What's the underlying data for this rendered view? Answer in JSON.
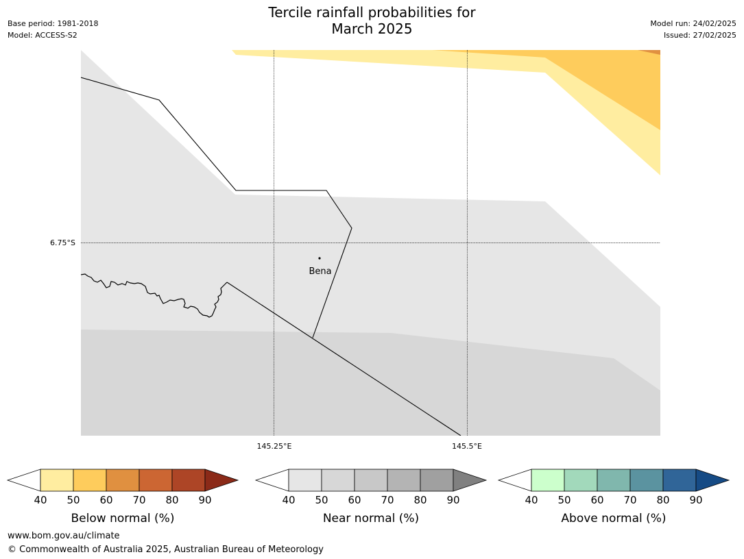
{
  "header": {
    "title_line1": "Tercile rainfall probabilities for",
    "title_line2": "March 2025",
    "base_period": "Base period: 1981-2018",
    "model": "Model: ACCESS-S2",
    "model_run": "Model run: 24/02/2025",
    "issued": "Issued: 27/02/2025"
  },
  "map": {
    "lat_label": "6.75°S",
    "lon_labels": [
      "145.25°E",
      "145.5°E"
    ],
    "place_label": "Bena",
    "colors": {
      "near_40": "#e6e6e6",
      "near_50": "#d7d7d7",
      "below_40": "#ffeda0",
      "below_50": "#fecc5c",
      "below_60": "#e09040"
    }
  },
  "legends": [
    {
      "name": "below",
      "label": "Below normal (%)",
      "ticks": [
        "40",
        "50",
        "60",
        "70",
        "80",
        "90"
      ],
      "colors": [
        "#ffeda0",
        "#fecc5c",
        "#e09040",
        "#cc6633",
        "#ad4526",
        "#8b2a18"
      ]
    },
    {
      "name": "near",
      "label": "Near normal (%)",
      "ticks": [
        "40",
        "50",
        "60",
        "70",
        "80",
        "90"
      ],
      "colors": [
        "#e6e6e6",
        "#d7d7d7",
        "#c8c8c8",
        "#b4b4b4",
        "#a0a0a0",
        "#808080"
      ]
    },
    {
      "name": "above",
      "label": "Above normal (%)",
      "ticks": [
        "40",
        "50",
        "60",
        "70",
        "80",
        "90"
      ],
      "colors": [
        "#ccffcc",
        "#a2d9bb",
        "#80b7ad",
        "#5b93a0",
        "#306598",
        "#164b85"
      ]
    }
  ],
  "footer": {
    "url": "www.bom.gov.au/climate",
    "copyright": "© Commonwealth of Australia 2025, Australian Bureau of Meteorology"
  }
}
